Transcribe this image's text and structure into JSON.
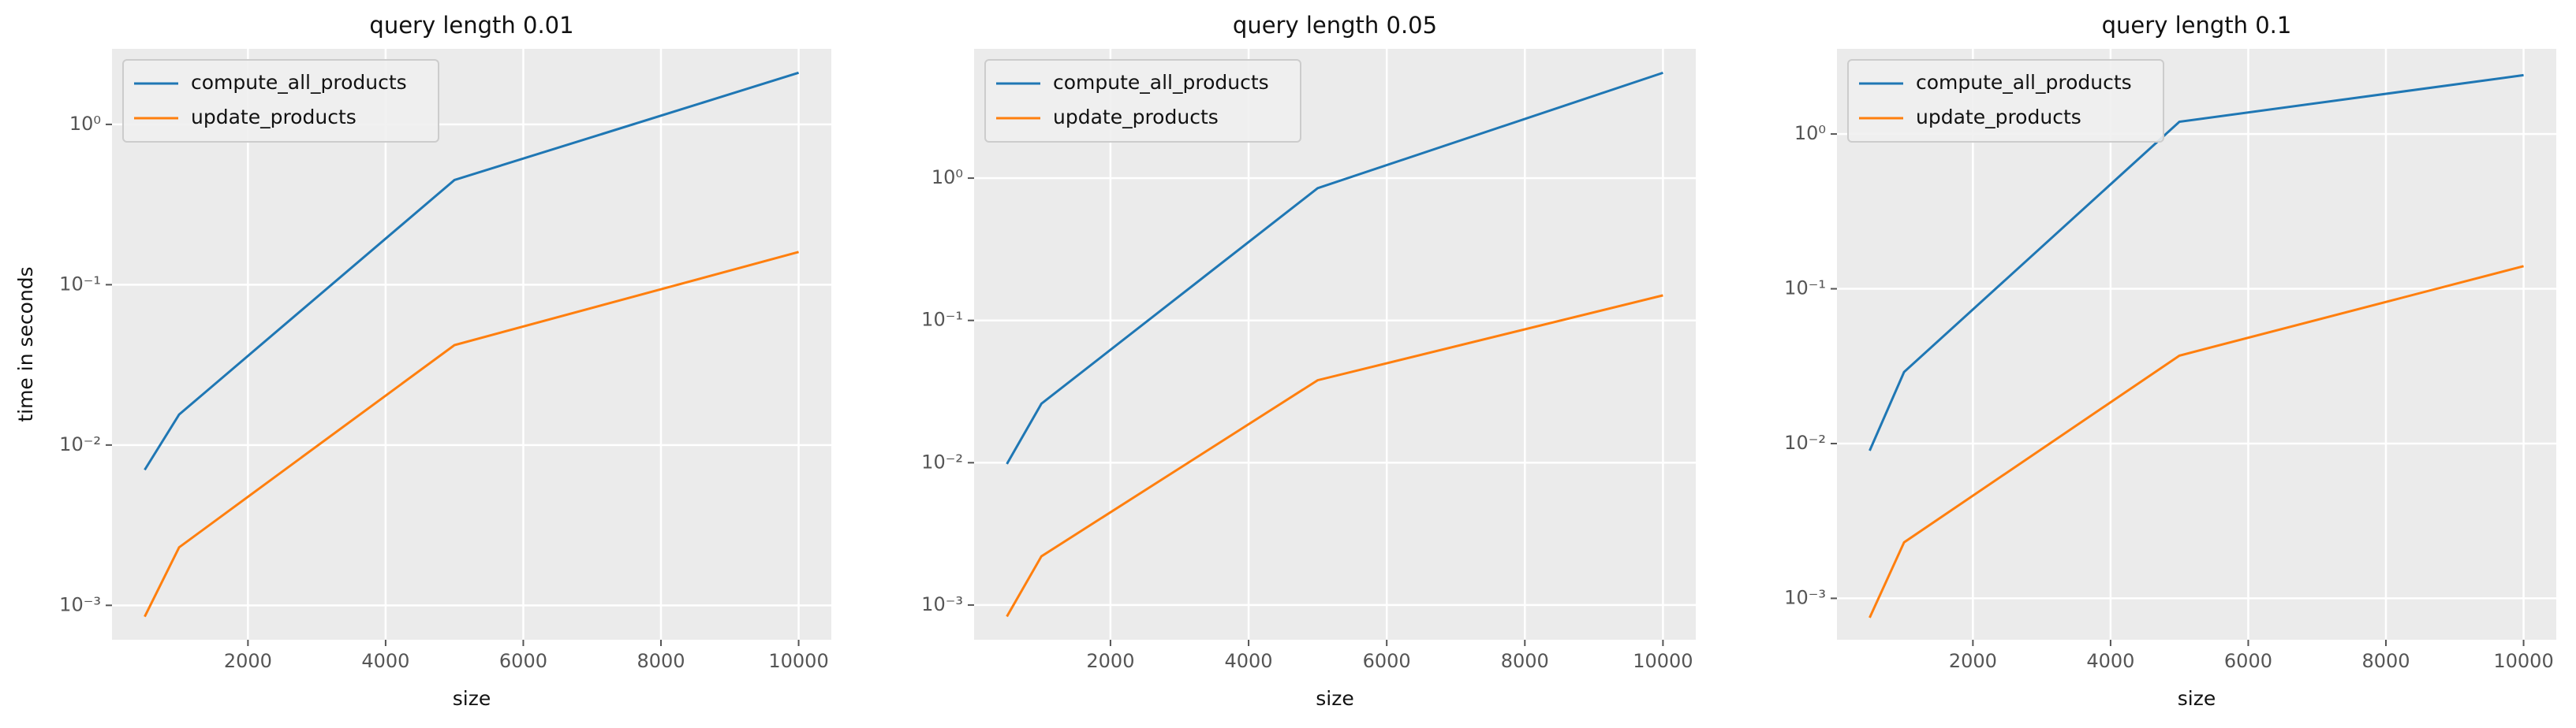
{
  "chart_data": [
    {
      "type": "line",
      "title": "query length 0.01",
      "xlabel": "size",
      "ylabel": "time in seconds",
      "x": [
        500,
        1000,
        5000,
        10000
      ],
      "series": [
        {
          "name": "compute_all_products",
          "color": "#1f77b4",
          "values": [
            0.007,
            0.0155,
            0.45,
            2.1
          ]
        },
        {
          "name": "update_products",
          "color": "#ff7f0e",
          "values": [
            0.00085,
            0.0023,
            0.042,
            0.16
          ]
        }
      ],
      "xlim": [
        25,
        10475
      ],
      "ylim": [
        0.00061,
        2.96
      ],
      "yscale": "log",
      "xticks": [
        2000,
        4000,
        6000,
        8000,
        10000
      ],
      "yticks": [
        {
          "value": 0.001,
          "label": "10⁻³"
        },
        {
          "value": 0.01,
          "label": "10⁻²"
        },
        {
          "value": 0.1,
          "label": "10⁻¹"
        },
        {
          "value": 1,
          "label": "10⁰"
        }
      ],
      "grid": true,
      "legend": "upper left"
    },
    {
      "type": "line",
      "title": "query length 0.05",
      "xlabel": "size",
      "x": [
        500,
        1000,
        5000,
        10000
      ],
      "series": [
        {
          "name": "compute_all_products",
          "color": "#1f77b4",
          "values": [
            0.0098,
            0.026,
            0.85,
            5.5
          ]
        },
        {
          "name": "update_products",
          "color": "#ff7f0e",
          "values": [
            0.00083,
            0.0022,
            0.038,
            0.15
          ]
        }
      ],
      "xlim": [
        25,
        10475
      ],
      "ylim": [
        0.00057,
        8.1
      ],
      "yscale": "log",
      "xticks": [
        2000,
        4000,
        6000,
        8000,
        10000
      ],
      "yticks": [
        {
          "value": 0.001,
          "label": "10⁻³"
        },
        {
          "value": 0.01,
          "label": "10⁻²"
        },
        {
          "value": 0.1,
          "label": "10⁻¹"
        },
        {
          "value": 1,
          "label": "10⁰"
        }
      ],
      "grid": true,
      "legend": "upper left"
    },
    {
      "type": "line",
      "title": "query length 0.1",
      "xlabel": "size",
      "x": [
        500,
        1000,
        5000,
        10000
      ],
      "series": [
        {
          "name": "compute_all_products",
          "color": "#1f77b4",
          "values": [
            0.009,
            0.029,
            1.2,
            2.4
          ]
        },
        {
          "name": "update_products",
          "color": "#ff7f0e",
          "values": [
            0.00075,
            0.0023,
            0.037,
            0.14
          ]
        }
      ],
      "xlim": [
        25,
        10475
      ],
      "ylim": [
        0.00054,
        3.55
      ],
      "yscale": "log",
      "xticks": [
        2000,
        4000,
        6000,
        8000,
        10000
      ],
      "yticks": [
        {
          "value": 0.001,
          "label": "10⁻³"
        },
        {
          "value": 0.01,
          "label": "10⁻²"
        },
        {
          "value": 0.1,
          "label": "10⁻¹"
        },
        {
          "value": 1,
          "label": "10⁰"
        }
      ],
      "grid": true,
      "legend": "upper left"
    }
  ]
}
